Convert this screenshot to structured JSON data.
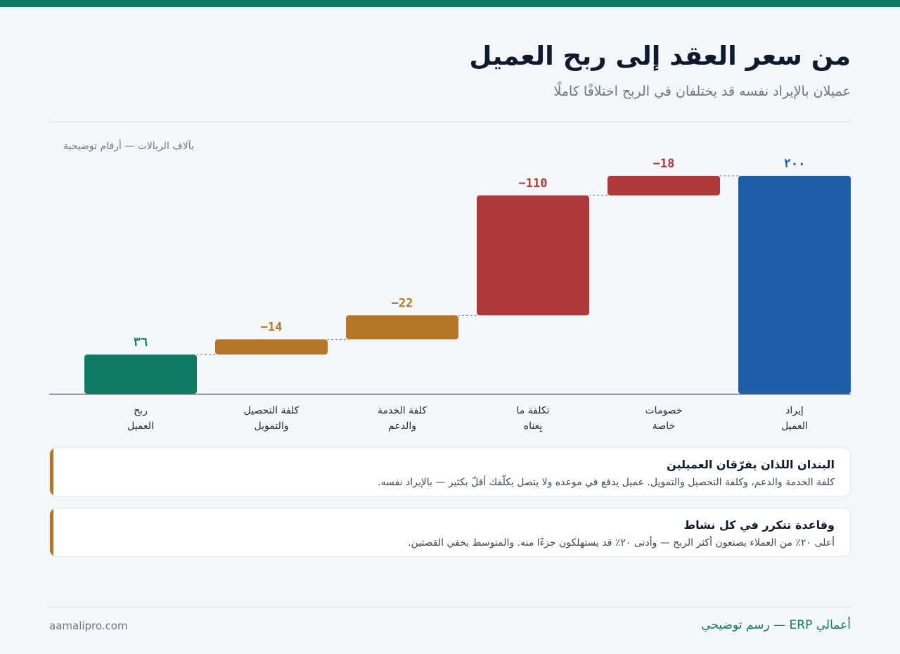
{
  "header": {
    "title": "من سعر العقد إلى ربح العميل",
    "subtitle": "عميلان بالإيراد نفسه قد يختلفان في الربح اختلافًا كاملًا"
  },
  "chart_units": "بآلاف الريالات — أرقام توضيحية",
  "chart_data": {
    "type": "bar",
    "subtype": "waterfall",
    "direction": "rtl",
    "categories": [
      "إيراد العميل",
      "خصومات خاصة",
      "تكلفة ما يِعناه",
      "كلفة الخدمة والدعم",
      "كلفة التحصيل والتمويل",
      "ربح العميل"
    ],
    "category_lines": [
      [
        "إيراد",
        "العميل"
      ],
      [
        "خصومات",
        "خاصة"
      ],
      [
        "تكلفة ما",
        "يِعناه"
      ],
      [
        "كلفة الخدمة",
        "والدعم"
      ],
      [
        "كلفة التحصيل",
        "والتمويل"
      ],
      [
        "ربح",
        "العميل"
      ]
    ],
    "values": [
      200,
      -18,
      -110,
      -22,
      -14,
      36
    ],
    "value_labels": [
      "٢٠٠",
      "−18",
      "−110",
      "−22",
      "−14",
      "٣٦"
    ],
    "kinds": [
      "total",
      "delta",
      "delta",
      "delta",
      "delta",
      "total"
    ],
    "colors": [
      "#1f5fa8",
      "#b0393a",
      "#b0393a",
      "#b5762a",
      "#b5762a",
      "#0f7b66"
    ],
    "ylim": [
      0,
      200
    ],
    "grid": false,
    "legend": "none"
  },
  "cards": [
    {
      "title": "البندان اللذان يفرّقان العميلين",
      "text": "كلفة الخدمة والدعم، وكلفة التحصيل والتمويل. عميل يدفع في موعده ولا يتصل يكلّفك أقلّ بكثير — بالإيراد نفسه."
    },
    {
      "title": "وقاعدة تتكرر في كل نشاط",
      "text": "أعلى ٢٠٪ من العملاء يصنعون أكثر الربح — وأدنى ٢٠٪ قد يستهلكون جزءًا منه. والمتوسط يخفي القصتين."
    }
  ],
  "footer": {
    "brand": "أعمالي ERP — رسم توضيحي",
    "site": "aamalipro.com"
  },
  "colors": {
    "accent": "#0f7b66",
    "revenue": "#1f5fa8",
    "major_cost": "#b0393a",
    "minor_cost": "#b5762a",
    "profit": "#0f7b66"
  }
}
